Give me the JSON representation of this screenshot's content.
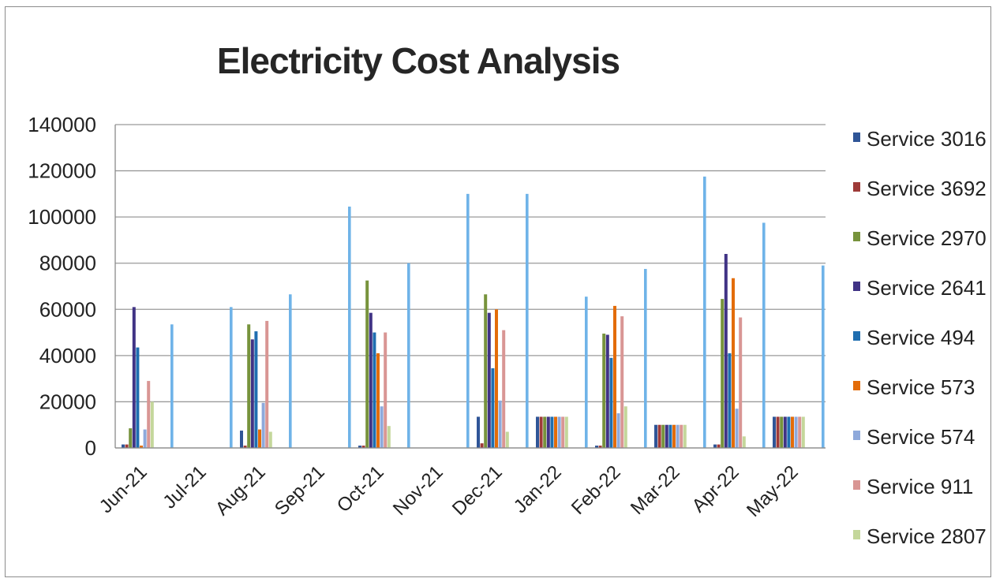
{
  "chart_data": {
    "type": "bar",
    "title": "Electricity Cost Analysis",
    "xlabel": "",
    "ylabel": "",
    "ylim": [
      0,
      140000
    ],
    "yticks": [
      "0",
      "20000",
      "40000",
      "60000",
      "80000",
      "100000",
      "120000",
      "140000"
    ],
    "grid": true,
    "legend_position": "right",
    "categories": [
      "Jun-21",
      "Jul-21",
      "Aug-21",
      "Sep-21",
      "Oct-21",
      "Nov-21",
      "Dec-21",
      "Jan-22",
      "Feb-22",
      "Mar-22",
      "Apr-22",
      "May-22"
    ],
    "series": [
      {
        "name": "Service 3016",
        "color": "#2f5597",
        "values": [
          1500,
          0,
          7500,
          0,
          1000,
          0,
          13500,
          13500,
          1000,
          10000,
          1500,
          13500
        ]
      },
      {
        "name": "Service 3692",
        "color": "#9e3a38",
        "values": [
          1500,
          0,
          1000,
          0,
          1000,
          0,
          2000,
          13500,
          1000,
          10000,
          1500,
          13500
        ]
      },
      {
        "name": "Service 2970",
        "color": "#77933c",
        "values": [
          8500,
          0,
          53500,
          0,
          72500,
          0,
          66500,
          13500,
          49500,
          10000,
          64500,
          13500
        ]
      },
      {
        "name": "Service 2641",
        "color": "#403385",
        "values": [
          61000,
          0,
          47000,
          0,
          58500,
          0,
          58500,
          13500,
          49000,
          10000,
          84000,
          13500
        ]
      },
      {
        "name": "Service 494",
        "color": "#1f6eb0",
        "values": [
          43500,
          0,
          50500,
          0,
          50000,
          0,
          34500,
          13500,
          39000,
          10000,
          41000,
          13500
        ]
      },
      {
        "name": "Service 573",
        "color": "#e36c09",
        "values": [
          1000,
          0,
          8000,
          0,
          41000,
          0,
          60000,
          13500,
          61500,
          10000,
          73500,
          13500
        ]
      },
      {
        "name": "Service 574",
        "color": "#8ea9db",
        "values": [
          8000,
          0,
          19500,
          0,
          18000,
          0,
          20500,
          13500,
          15000,
          10000,
          17000,
          13500
        ]
      },
      {
        "name": "Service 911",
        "color": "#d99694",
        "values": [
          29000,
          0,
          55000,
          0,
          50000,
          0,
          51000,
          13500,
          57000,
          10000,
          56500,
          13500
        ]
      },
      {
        "name": "Service 2807",
        "color": "#c4d79b",
        "values": [
          20000,
          0,
          7000,
          0,
          9500,
          0,
          7000,
          13500,
          18000,
          10000,
          5000,
          13500
        ]
      }
    ],
    "extra_bars": [
      {
        "color": "#6fb3e8",
        "between": [
          0,
          1
        ],
        "value": 53500
      },
      {
        "color": "#6fb3e8",
        "between": [
          1,
          2
        ],
        "value": 61000
      },
      {
        "color": "#6fb3e8",
        "between": [
          2,
          3
        ],
        "value": 66500
      },
      {
        "color": "#6fb3e8",
        "between": [
          3,
          4
        ],
        "value": 104500
      },
      {
        "color": "#6fb3e8",
        "between": [
          4,
          5
        ],
        "value": 80000
      },
      {
        "color": "#6fb3e8",
        "between": [
          5,
          6
        ],
        "value": 110000
      },
      {
        "color": "#6fb3e8",
        "between": [
          6,
          7
        ],
        "value": 110000
      },
      {
        "color": "#6fb3e8",
        "between": [
          7,
          8
        ],
        "value": 65500
      },
      {
        "color": "#6fb3e8",
        "between": [
          8,
          9
        ],
        "value": 77500
      },
      {
        "color": "#6fb3e8",
        "between": [
          9,
          10
        ],
        "value": 117500
      },
      {
        "color": "#6fb3e8",
        "between": [
          10,
          11
        ],
        "value": 97500
      },
      {
        "color": "#6fb3e8",
        "between": [
          11,
          12
        ],
        "value": 79000
      }
    ]
  }
}
